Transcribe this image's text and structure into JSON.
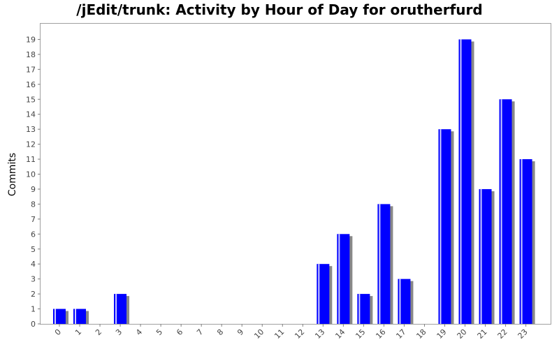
{
  "chart_data": {
    "type": "bar",
    "title": "/jEdit/trunk: Activity by Hour of Day for orutherfurd",
    "xlabel": "",
    "ylabel": "Commits",
    "categories": [
      "0",
      "1",
      "2",
      "3",
      "4",
      "5",
      "6",
      "7",
      "8",
      "9",
      "10",
      "11",
      "12",
      "13",
      "14",
      "15",
      "16",
      "17",
      "18",
      "19",
      "20",
      "21",
      "22",
      "23"
    ],
    "values": [
      1,
      1,
      0,
      2,
      0,
      0,
      0,
      0,
      0,
      0,
      0,
      0,
      0,
      4,
      6,
      2,
      8,
      3,
      0,
      13,
      19,
      9,
      15,
      11
    ],
    "ylim": [
      0,
      20
    ],
    "yticks": [
      0,
      1,
      2,
      3,
      4,
      5,
      6,
      7,
      8,
      9,
      10,
      11,
      12,
      13,
      14,
      15,
      16,
      17,
      18,
      19
    ],
    "bar_color": "#0000ff",
    "shadow_color": "#888888",
    "grid": false,
    "legend": false
  }
}
